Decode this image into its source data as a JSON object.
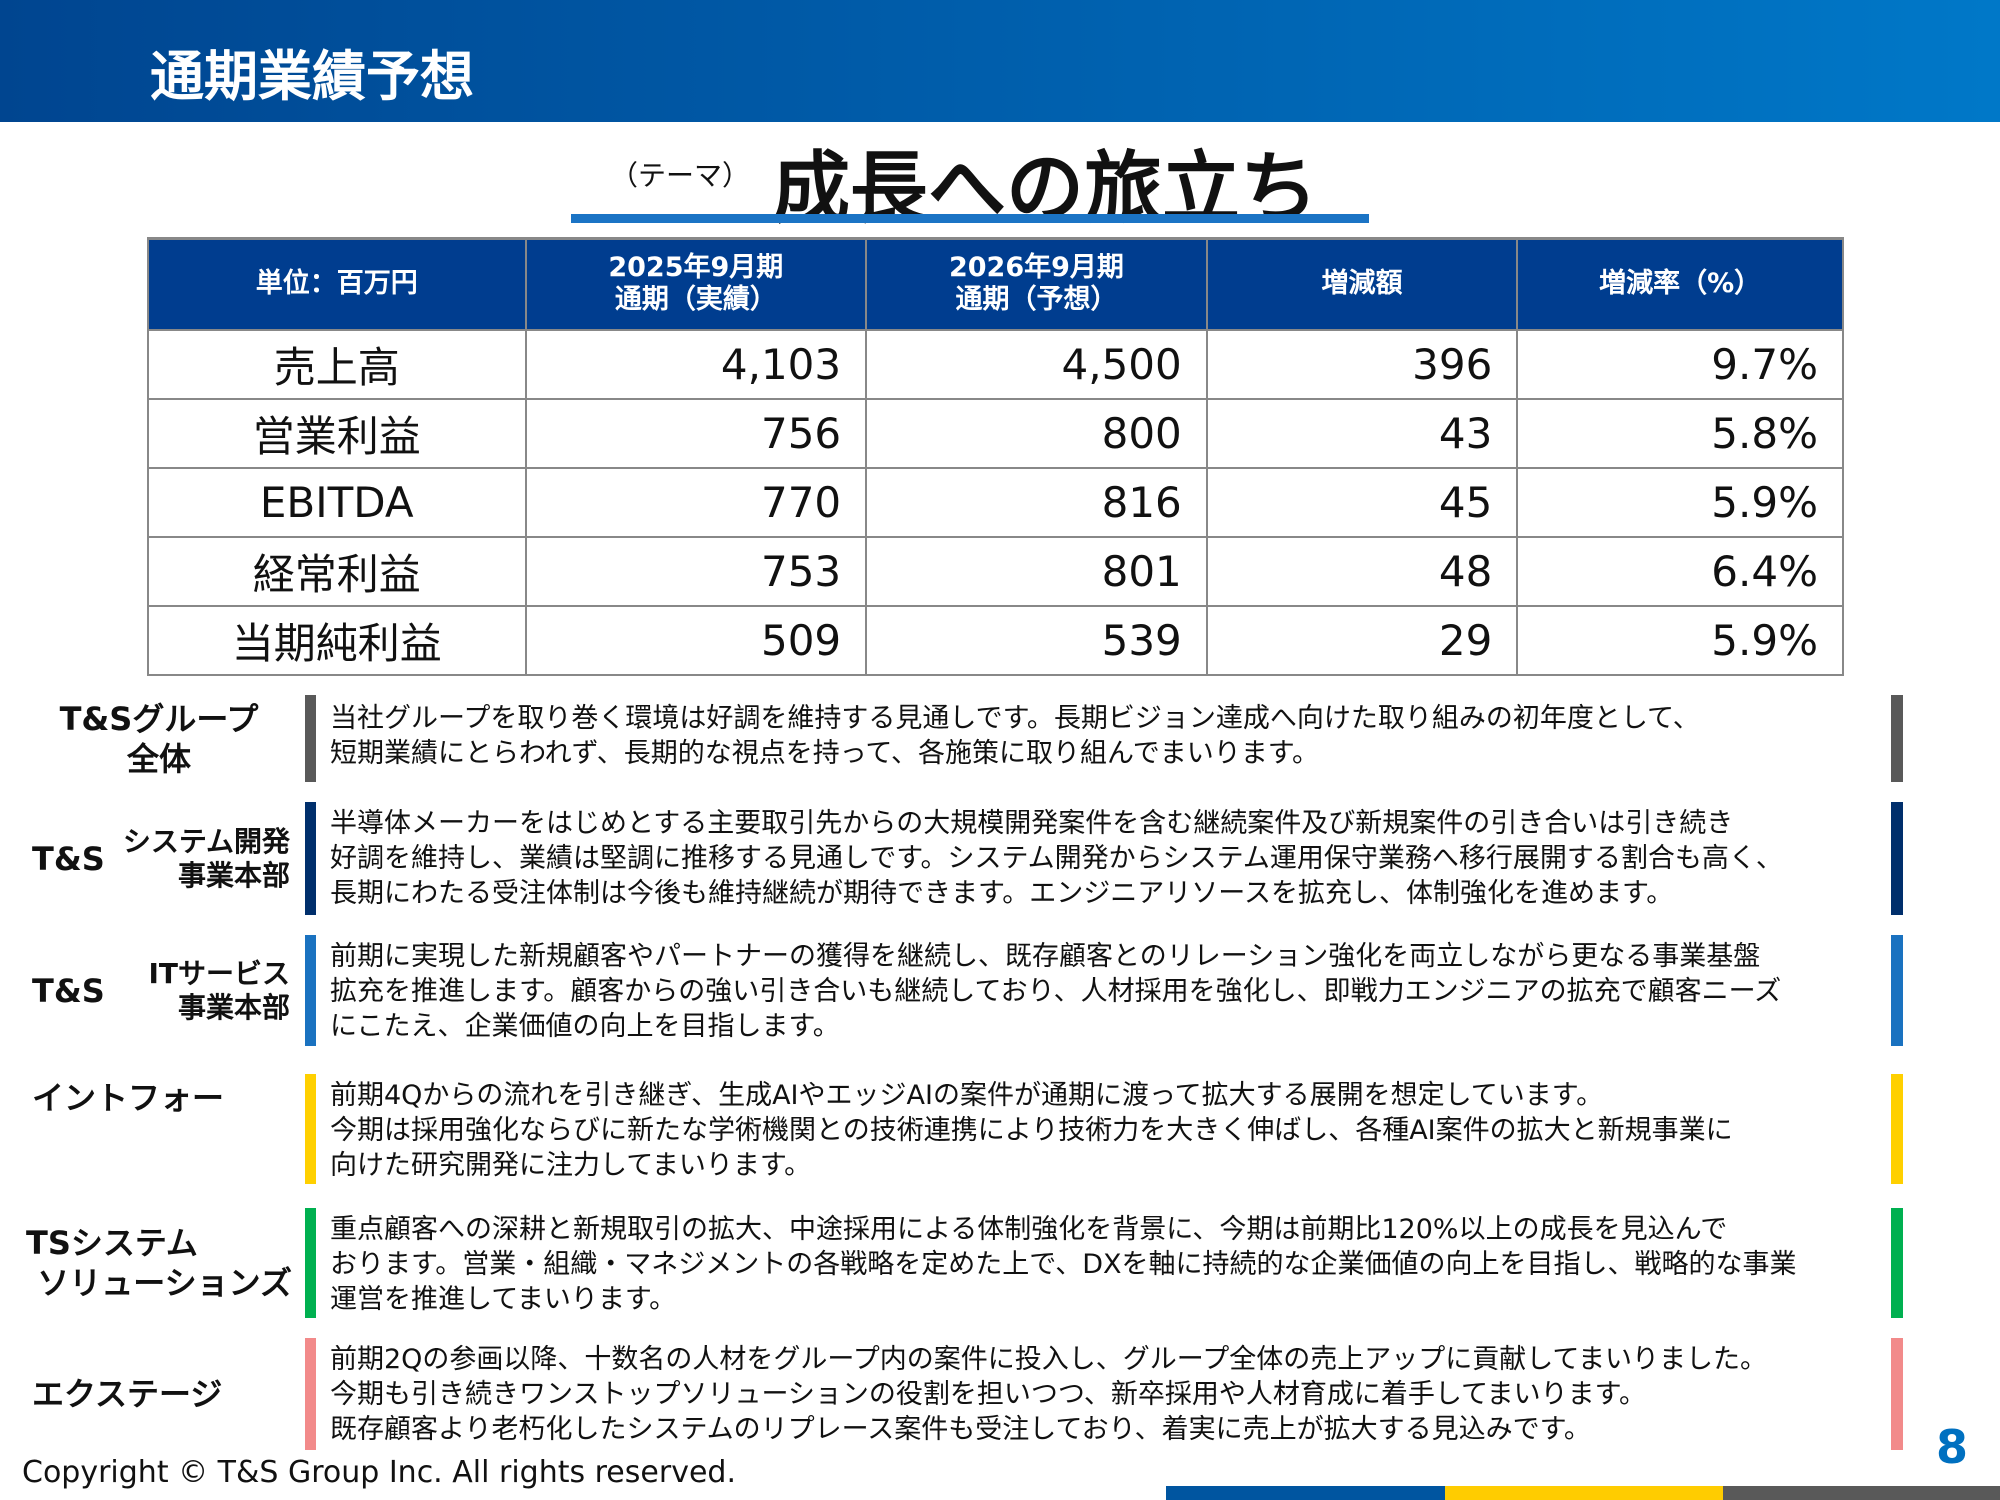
{
  "header": {
    "title": "通期業績予想"
  },
  "theme": {
    "label": "（テーマ）",
    "title": "成長への旅立ち"
  },
  "table": {
    "headers": [
      "単位：百万円",
      "2025年9月期\n通期（実績）",
      "2026年9月期\n通期（予想）",
      "増減額",
      "増減率（%）"
    ],
    "rows": [
      [
        "売上高",
        "4,103",
        "4,500",
        "396",
        "9.7%"
      ],
      [
        "営業利益",
        "756",
        "800",
        "43",
        "5.8%"
      ],
      [
        "EBITDA",
        "770",
        "816",
        "45",
        "5.9%"
      ],
      [
        "経常利益",
        "753",
        "801",
        "48",
        "6.4%"
      ],
      [
        "当期純利益",
        "509",
        "539",
        "29",
        "5.9%"
      ]
    ]
  },
  "sections": [
    {
      "label": "T&Sグループ",
      "label2": "全体",
      "color": "#595959",
      "text": "当社グループを取り巻く環境は好調を維持する見通しです。長期ビジョン達成へ向けた取り組みの初年度として、\n短期業績にとらわれず、長期的な視点を持って、各施策に取り組んでまいります。"
    },
    {
      "label": "T&S",
      "sub": "システム開発\n事業本部",
      "color": "#002f6c",
      "text": "半導体メーカーをはじめとする主要取引先からの大規模開発案件を含む継続案件及び新規案件の引き合いは引き続き\n好調を維持し、業績は堅調に推移する見通しです。システム開発からシステム運用保守業務へ移行展開する割合も高く、\n長期にわたる受注体制は今後も維持継続が期待できます。エンジニアリソースを拡充し、体制強化を進めます。"
    },
    {
      "label": "T&S",
      "sub": "ITサービス\n事業本部",
      "color": "#1a72c0",
      "text": "前期に実現した新規顧客やパートナーの獲得を継続し、既存顧客とのリレーション強化を両立しながら更なる事業基盤\n拡充を推進します。顧客からの強い引き合いも継続しており、人材採用を強化し、即戦力エンジニアの拡充で顧客ニーズ\nにこたえ、企業価値の向上を目指します。"
    },
    {
      "label": "イントフォー",
      "color": "#ffd000",
      "text": "前期4Qからの流れを引き継ぎ、生成AIやエッジAIの案件が通期に渡って拡大する展開を想定しています。\n今期は採用強化ならびに新たな学術機関との技術連携により技術力を大きく伸ばし、各種AI案件の拡大と新規事業に\n向けた研究開発に注力してまいります。"
    },
    {
      "label": "TSシステム",
      "label2": "ソリューションズ",
      "color": "#00b050",
      "text": "重点顧客への深耕と新規取引の拡大、中途採用による体制強化を背景に、今期は前期比120%以上の成長を見込んで\nおります。営業・組織・マネジメントの各戦略を定めた上で、DXを軸に持続的な企業価値の向上を目指し、戦略的な事業\n運営を推進してまいります。"
    },
    {
      "label": "エクステージ",
      "color": "#f28a8a",
      "text": "前期2Qの参画以降、十数名の人材をグループ内の案件に投入し、グループ全体の売上アップに貢献してまいりました。\n今期も引き続きワンストップソリューションの役割を担いつつ、新卒採用や人材育成に着手してまいります。\n既存顧客より老朽化したシステムのリプレース案件も受注しており、着実に売上が拡大する見込みです。"
    }
  ],
  "footer": {
    "copyright": "Copyright © T&S Group Inc. All rights reserved.",
    "page": "8",
    "colors": [
      "#0055a0",
      "#ffcc00",
      "#595959"
    ]
  }
}
